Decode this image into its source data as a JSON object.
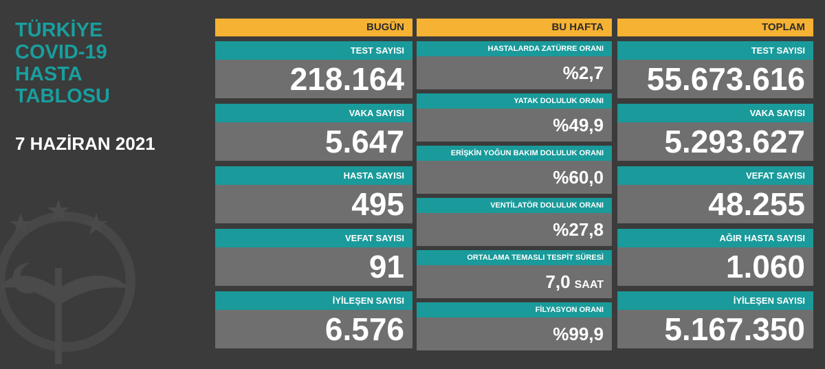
{
  "title_lines": [
    "TÜRKİYE",
    "COVID-19",
    "HASTA",
    "TABLOSU"
  ],
  "date": "7 HAZİRAN 2021",
  "columns": [
    {
      "header": "BUGÜN",
      "cards": [
        {
          "label": "TEST SAYISI",
          "value": "218.164"
        },
        {
          "label": "VAKA SAYISI",
          "value": "5.647"
        },
        {
          "label": "HASTA SAYISI",
          "value": "495"
        },
        {
          "label": "VEFAT SAYISI",
          "value": "91"
        },
        {
          "label": "İYİLEŞEN SAYISI",
          "value": "6.576"
        }
      ]
    },
    {
      "header": "BU HAFTA",
      "cards": [
        {
          "label": "HASTALARDA ZATÜRRE ORANI",
          "value": "%2,7"
        },
        {
          "label": "YATAK DOLULUK ORANI",
          "value": "%49,9"
        },
        {
          "label": "ERİŞKİN YOĞUN BAKIM DOLULUK ORANI",
          "value": "%60,0"
        },
        {
          "label": "VENTİLATÖR DOLULUK ORANI",
          "value": "%27,8"
        },
        {
          "label": "ORTALAMA TEMASLI TESPİT SÜRESİ",
          "value": "7,0",
          "unit": "SAAT"
        },
        {
          "label": "FİLYASYON ORANI",
          "value": "%99,9"
        }
      ]
    },
    {
      "header": "TOPLAM",
      "cards": [
        {
          "label": "TEST SAYISI",
          "value": "55.673.616"
        },
        {
          "label": "VAKA SAYISI",
          "value": "5.293.627"
        },
        {
          "label": "VEFAT SAYISI",
          "value": "48.255"
        },
        {
          "label": "AĞIR HASTA SAYISI",
          "value": "1.060"
        },
        {
          "label": "İYİLEŞEN SAYISI",
          "value": "5.167.350"
        }
      ]
    }
  ]
}
